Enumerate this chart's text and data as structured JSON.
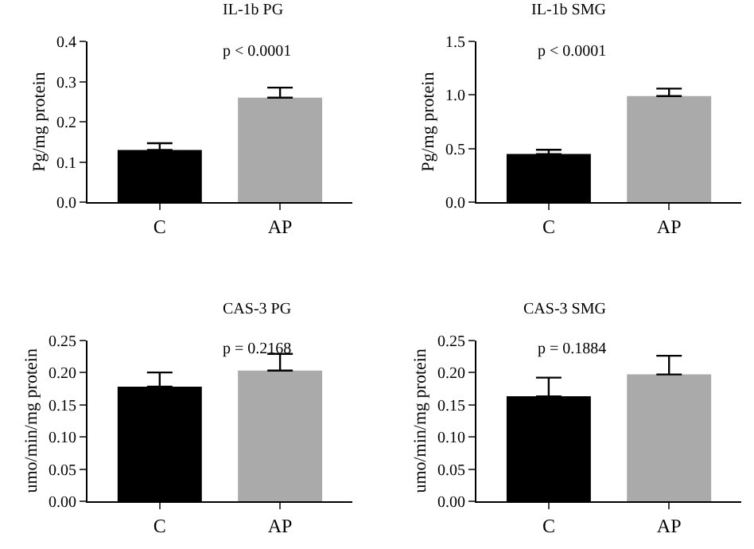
{
  "chart_data": [
    {
      "type": "bar",
      "title": "IL-1b PG",
      "ylabel": "Pg/mg protein",
      "categories": [
        "C",
        "AP"
      ],
      "values": [
        0.13,
        0.26
      ],
      "colors": [
        "#000000",
        "#aaaaaa"
      ],
      "errors": [
        [
          0.13,
          0.147
        ],
        [
          0.26,
          0.285
        ]
      ],
      "ylim": [
        0,
        0.4
      ],
      "yticks": [
        {
          "value": 0,
          "label": "0.0"
        },
        0.1,
        0.2,
        0.3,
        0.4
      ],
      "annotations": [
        "p < 0.0001"
      ]
    },
    {
      "type": "bar",
      "title": "IL-1b SMG",
      "ylabel": "Pg/mg protein",
      "categories": [
        "C",
        "AP"
      ],
      "values": [
        0.45,
        0.99
      ],
      "colors": [
        "#000000",
        "#aaaaaa"
      ],
      "errors": [
        [
          0.45,
          0.49
        ],
        [
          0.99,
          1.06
        ]
      ],
      "ylim": [
        0,
        1.5
      ],
      "yticks": [
        {
          "value": 0,
          "label": "0.0"
        },
        0.5,
        {
          "value": 1,
          "label": "1.0"
        },
        1.5
      ],
      "annotations": [
        "p < 0.0001"
      ]
    },
    {
      "type": "bar",
      "title": "CAS-3 PG",
      "ylabel": "umo/min/mg protein",
      "categories": [
        "C",
        "AP"
      ],
      "values": [
        0.178,
        0.203
      ],
      "colors": [
        "#000000",
        "#aaaaaa"
      ],
      "errors": [
        [
          0.178,
          0.2
        ],
        [
          0.203,
          0.229
        ]
      ],
      "ylim": [
        0,
        0.25
      ],
      "yticks": [
        {
          "value": 0,
          "label": "0.00"
        },
        0.05,
        {
          "value": 0.1,
          "label": "0.10"
        },
        0.15,
        {
          "value": 0.2,
          "label": "0.20"
        },
        0.25
      ],
      "annotations": [
        "p = 0.2168"
      ]
    },
    {
      "type": "bar",
      "title": "CAS-3 SMG",
      "ylabel": "umo/min/mg protein",
      "categories": [
        "C",
        "AP"
      ],
      "values": [
        0.163,
        0.197
      ],
      "colors": [
        "#000000",
        "#aaaaaa"
      ],
      "errors": [
        [
          0.163,
          0.192
        ],
        [
          0.197,
          0.226
        ]
      ],
      "ylim": [
        0,
        0.25
      ],
      "yticks": [
        {
          "value": 0,
          "label": "0.00"
        },
        0.05,
        {
          "value": 0.1,
          "label": "0.10"
        },
        0.15,
        {
          "value": 0.2,
          "label": "0.20"
        },
        0.25
      ],
      "annotations": [
        "p = 0.1884"
      ]
    }
  ]
}
